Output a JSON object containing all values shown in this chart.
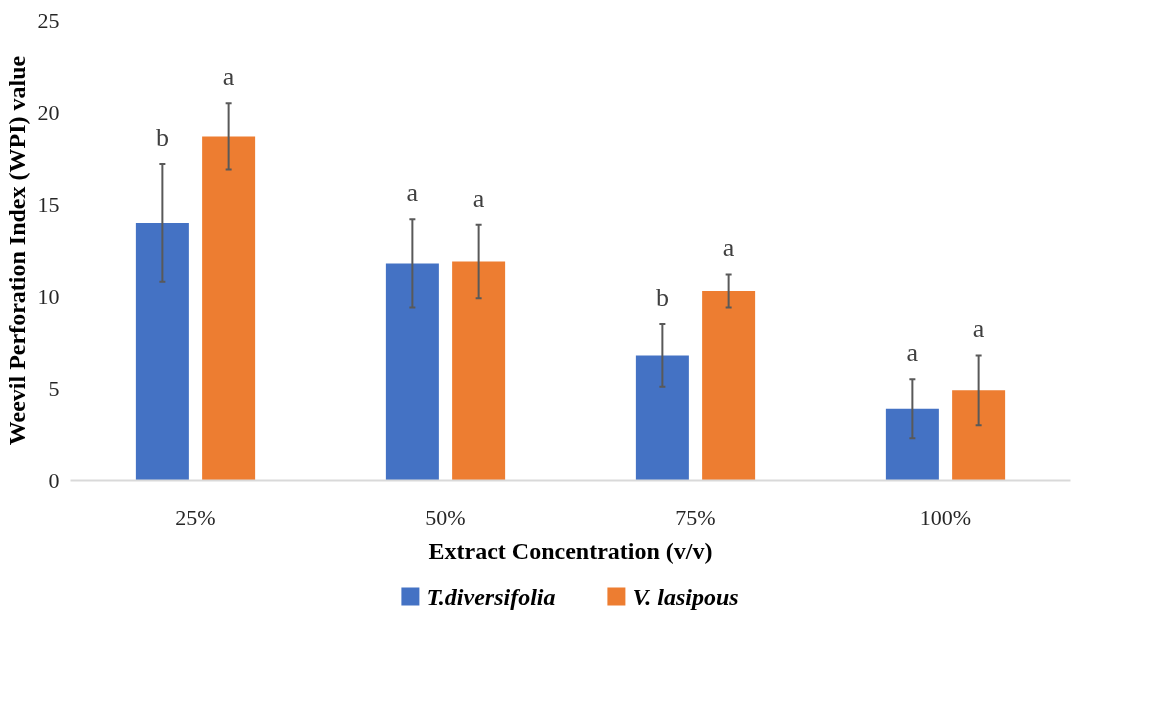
{
  "chart_data": {
    "type": "bar",
    "xlabel": "Extract Concentration (v/v)",
    "ylabel": "Weevil Perforation Index (WPI) value",
    "categories": [
      "25%",
      "50%",
      "75%",
      "100%"
    ],
    "series": [
      {
        "name": "T.diversifolia",
        "color": "#4472c4",
        "values": [
          14.0,
          11.8,
          6.8,
          3.9
        ],
        "errors": [
          3.2,
          2.4,
          1.7,
          1.6
        ],
        "value_labels": [
          "b",
          "a",
          "b",
          "a"
        ]
      },
      {
        "name": "V. lasipous",
        "color": "#ed7d31",
        "values": [
          18.7,
          11.9,
          10.3,
          4.9
        ],
        "errors": [
          1.8,
          2.0,
          0.9,
          1.9
        ],
        "value_labels": [
          "a",
          "a",
          "a",
          "a"
        ]
      }
    ],
    "ylim": [
      0,
      25
    ],
    "yticks": [
      0,
      5,
      10,
      15,
      20,
      25
    ],
    "grid": false,
    "legend": "bottom"
  }
}
